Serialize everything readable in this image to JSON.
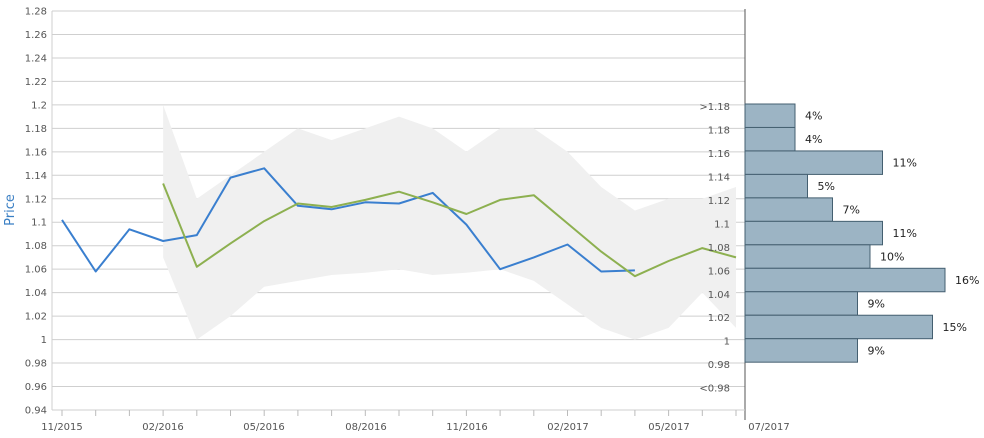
{
  "chart_data": {
    "type": "line",
    "title": "",
    "xlabel": "",
    "ylabel": "Price",
    "ylim": [
      0.94,
      1.28
    ],
    "y_ticks": [
      "0.94",
      "0.96",
      "0.98",
      "1",
      "1.02",
      "1.04",
      "1.06",
      "1.08",
      "1.1",
      "1.12",
      "1.14",
      "1.16",
      "1.18",
      "1.2",
      "1.22",
      "1.24",
      "1.26",
      "1.28"
    ],
    "x_tick_labels": [
      "11/2015",
      "02/2016",
      "05/2016",
      "08/2016",
      "11/2016",
      "02/2017",
      "05/2017",
      "07/2017"
    ],
    "grid": true,
    "colors": {
      "series_a": "#3a7fcf",
      "series_b": "#8db050",
      "band": "#f0f0f0",
      "histogram": "#9cb4c4",
      "histogram_edge": "#445f70"
    },
    "series": [
      {
        "x": [
          "2015-11",
          "2015-12",
          "2016-01",
          "2016-02",
          "2016-03",
          "2016-04",
          "2016-05",
          "2016-06",
          "2016-07",
          "2016-08",
          "2016-09",
          "2016-10",
          "2016-11",
          "2016-12",
          "2017-01",
          "2017-02",
          "2017-03",
          "2017-04"
        ],
        "values": [
          1.102,
          1.058,
          1.094,
          1.084,
          1.089,
          1.138,
          1.146,
          1.114,
          1.111,
          1.117,
          1.116,
          1.125,
          1.098,
          1.06,
          1.07,
          1.081,
          1.058,
          1.059
        ]
      },
      {
        "x": [
          "2016-02",
          "2016-03",
          "2016-04",
          "2016-05",
          "2016-06",
          "2016-07",
          "2016-08",
          "2016-09",
          "2016-10",
          "2016-11",
          "2016-12",
          "2017-01",
          "2017-02",
          "2017-03",
          "2017-04",
          "2017-05",
          "2017-06",
          "2017-07"
        ],
        "values": [
          1.133,
          1.062,
          1.082,
          1.101,
          1.116,
          1.113,
          1.119,
          1.126,
          1.117,
          1.107,
          1.119,
          1.123,
          1.099,
          1.075,
          1.054,
          1.067,
          1.078,
          1.07
        ]
      }
    ],
    "band": {
      "x": [
        "2016-02",
        "2016-03",
        "2016-04",
        "2016-05",
        "2016-06",
        "2016-07",
        "2016-08",
        "2016-09",
        "2016-10",
        "2016-11",
        "2016-12",
        "2017-01",
        "2017-02",
        "2017-03",
        "2017-04",
        "2017-05",
        "2017-06",
        "2017-07"
      ],
      "upper": [
        1.2,
        1.12,
        1.14,
        1.16,
        1.18,
        1.17,
        1.18,
        1.19,
        1.18,
        1.16,
        1.18,
        1.18,
        1.16,
        1.13,
        1.11,
        1.12,
        1.12,
        1.13
      ],
      "lower": [
        1.07,
        1.0,
        1.02,
        1.045,
        1.05,
        1.055,
        1.057,
        1.06,
        1.055,
        1.057,
        1.06,
        1.05,
        1.03,
        1.01,
        1.0,
        1.01,
        1.04,
        1.01
      ]
    },
    "histogram": {
      "bins": [
        ">1.18",
        "1.18",
        "1.16",
        "1.14",
        "1.12",
        "1.1",
        "1.08",
        "1.06",
        "1.04",
        "1.02",
        "1",
        "0.98",
        "<0.98"
      ],
      "values": [
        4,
        4,
        11,
        5,
        7,
        11,
        10,
        16,
        9,
        15,
        9,
        0,
        0
      ],
      "labels": [
        "4%",
        "4%",
        "11%",
        "5%",
        "7%",
        "11%",
        "10%",
        "16%",
        "9%",
        "15%",
        "9%",
        "",
        ""
      ]
    }
  }
}
